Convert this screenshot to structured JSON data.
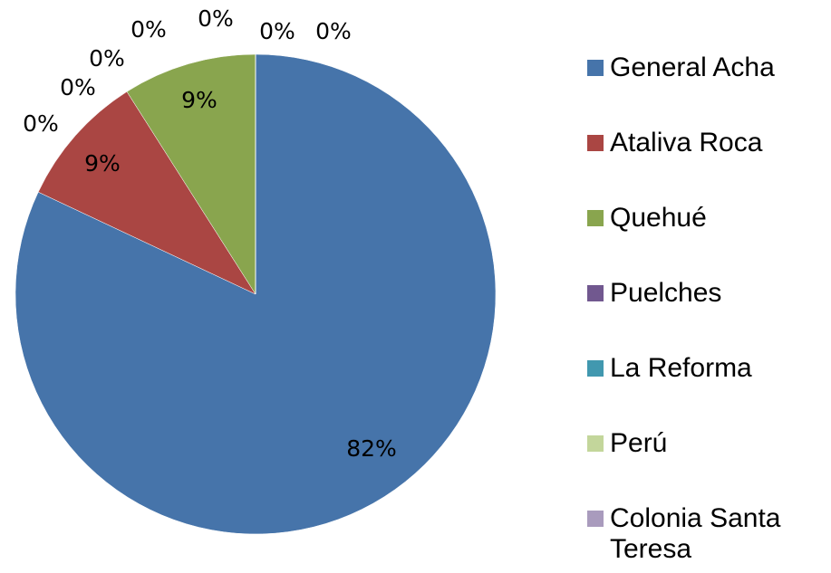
{
  "chart_data": {
    "type": "pie",
    "categories": [
      "General Acha",
      "Ataliva Roca",
      "Quehué",
      "Puelches",
      "La Reforma",
      "Perú",
      "Colonia Santa Teresa",
      null,
      null,
      null
    ],
    "values": [
      82,
      9,
      9,
      0,
      0,
      0,
      0,
      0,
      0,
      0
    ],
    "value_labels": [
      "82%",
      "9%",
      "9%",
      "0%",
      "0%",
      "0%",
      "0%",
      "0%",
      "0%",
      "0%"
    ],
    "colors": [
      "#4674aa",
      "#aa4643",
      "#89a54e",
      "#71588f",
      "#4198af",
      "#c3d69b",
      "#a99bbd"
    ],
    "legend": "right"
  }
}
